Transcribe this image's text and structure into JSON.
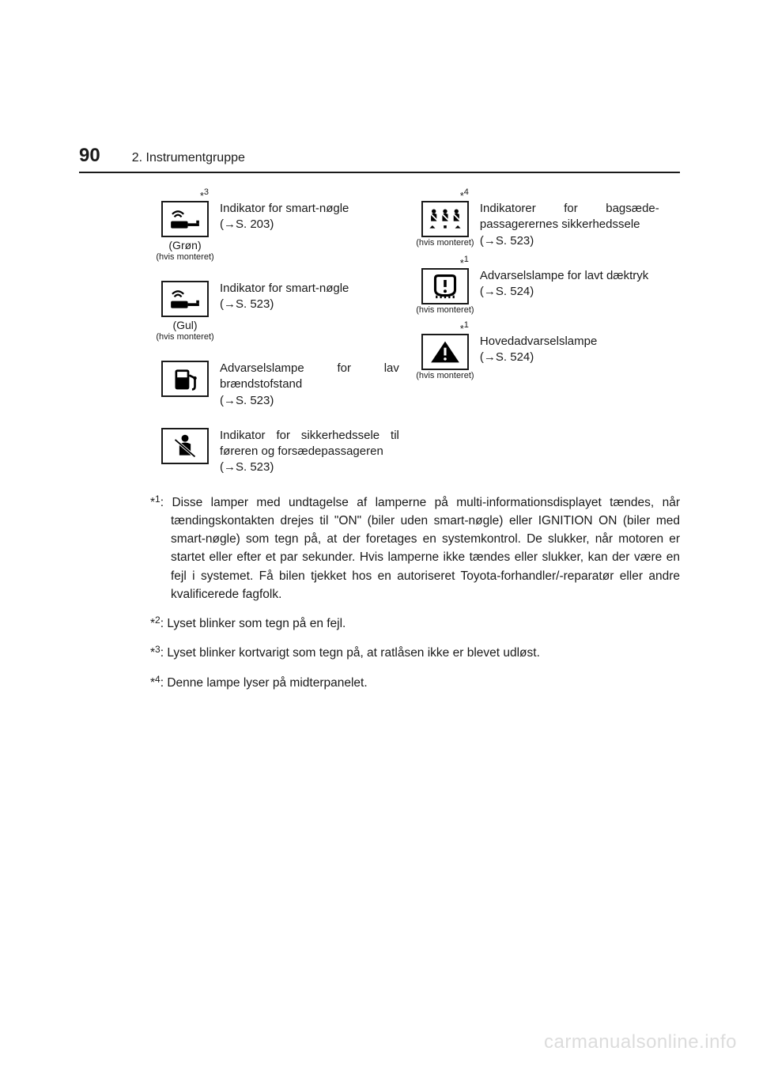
{
  "page_number": "90",
  "section_title": "2. Instrumentgruppe",
  "arrow": "→",
  "left_rows": [
    {
      "annotation": "*3",
      "icon": "key-wave",
      "under_label": "(Grøn)",
      "under_small": "(hvis monteret)",
      "desc": "Indikator for smart-nøgle",
      "ref": "(→S. 203)"
    },
    {
      "annotation": "",
      "icon": "key-wave",
      "under_label": "(Gul)",
      "under_small": "(hvis monteret)",
      "desc": "Indikator for smart-nøgle",
      "ref": "(→S. 523)"
    },
    {
      "annotation": "",
      "icon": "fuel",
      "under_label": "",
      "under_small": "",
      "desc": "Advarselslampe for lav brændstofstand",
      "ref": "(→S. 523)"
    },
    {
      "annotation": "",
      "icon": "seatbelt",
      "under_label": "",
      "under_small": "",
      "desc": "Indikator for sikkerheds­sele til føreren og forsæ­depassageren",
      "ref": "(→S. 523)"
    }
  ],
  "right_rows": [
    {
      "annotation": "*4",
      "icon": "rear-belts",
      "under_label": "",
      "under_small": "(hvis monteret)",
      "desc": "Indikatorer for bagsæde­passagerernes sikker­hedssele",
      "ref": "(→S. 523)"
    },
    {
      "annotation": "*1",
      "icon": "tpms",
      "under_label": "",
      "under_small": "(hvis monteret)",
      "desc": "Advarselslampe for lavt dæktryk",
      "ref": "(→S. 524)"
    },
    {
      "annotation": "*1",
      "icon": "master-warn",
      "under_label": "",
      "under_small": "(hvis monteret)",
      "desc": "Hovedadvarselslampe",
      "ref": "(→S. 524)"
    }
  ],
  "footnotes": [
    {
      "mark": "*1",
      "text": ": Disse lamper med undtagelse af lamperne på multi-informationsdisplayet tændes, når tændingskontakten drejes til \"ON\" (biler uden smart-nøgle) eller IGNITION ON (biler med smart-nøgle) som tegn på, at der foretages en systemkontrol. De slukker, når motoren er startet eller efter et par sekunder. Hvis lamperne ikke tændes eller slukker, kan der være en fejl i systemet. Få bilen tjekket hos en autoriseret Toyota-forhandler/-reparatør eller andre kvalificerede fagfolk."
    },
    {
      "mark": "*2",
      "text": ": Lyset blinker som tegn på en fejl."
    },
    {
      "mark": "*3",
      "text": ": Lyset blinker kortvarigt som tegn på, at ratlåsen ikke er blevet udløst."
    },
    {
      "mark": "*4",
      "text": ": Denne lampe lyser på midterpanelet."
    }
  ],
  "watermark": "carmanualsonline.info",
  "colors": {
    "text": "#1a1a1a",
    "watermark": "#dcdcdc",
    "background": "#ffffff"
  },
  "icons_svg": {
    "key-wave": "<svg viewBox='0 0 56 42' width='50' height='38'><path d='M10 14 Q18 6 26 14' fill='none' stroke='#000' stroke-width='2.5'/><path d='M13 18 Q18 12 23 18' fill='none' stroke='#000' stroke-width='2.5'/><rect x='8' y='24' width='24' height='10' rx='2' fill='#000'/><rect x='32' y='27' width='16' height='4' fill='#000'/><rect x='44' y='23' width='4' height='4' fill='#000'/></svg>",
    "fuel": "<svg viewBox='0 0 56 42' width='50' height='38'><rect x='14' y='8' width='20' height='28' rx='3' fill='#000'/><rect x='17' y='11' width='14' height='8' fill='#fff'/><path d='M34 16 L42 20 L42 32 Q42 36 38 36' fill='none' stroke='#000' stroke-width='3'/><circle cx='42' cy='20' r='2.5' fill='#000'/></svg>",
    "seatbelt": "<svg viewBox='0 0 56 42' width='50' height='38'><circle cx='28' cy='10' r='5' fill='#000'/><path d='M20 18 Q28 14 36 18 L36 34 L20 34 Z' fill='#000'/><line x1='14' y1='12' x2='42' y2='36' stroke='#fff' stroke-width='4'/><line x1='14' y1='12' x2='42' y2='36' stroke='#000' stroke-width='2'/></svg>",
    "rear-belts": "<svg viewBox='0 0 56 42' width='50' height='38'><g transform='translate(6,6)'><circle cx='6' cy='4' r='3' fill='#000'/><path d='M2 8 Q6 6 10 8 L10 18 L2 18 Z' fill='#000'/><line x1='0' y1='6' x2='12' y2='18' stroke='#fff' stroke-width='2'/></g><g transform='translate(22,6)'><circle cx='6' cy='4' r='3' fill='#000'/><path d='M2 8 Q6 6 10 8 L10 18 L2 18 Z' fill='#000'/><line x1='0' y1='6' x2='12' y2='18' stroke='#fff' stroke-width='2'/></g><g transform='translate(38,6)'><circle cx='6' cy='4' r='3' fill='#000'/><path d='M2 8 Q6 6 10 8 L10 18 L2 18 Z' fill='#000'/><line x1='0' y1='6' x2='12' y2='18' stroke='#fff' stroke-width='2'/></g><g fill='#000'><polygon points='10,30 14,34 6,34'/><rect x='26' y='30' width='4' height='4'/><polygon points='46,30 50,34 42,34'/></g></svg>",
    "tpms": "<svg viewBox='0 0 56 42' width='50' height='38'><path d='M14 10 Q14 6 18 6 L38 6 Q42 6 42 10 L42 26 Q42 34 28 34 Q14 34 14 26 Z' fill='none' stroke='#000' stroke-width='3.5'/><line x1='28' y1='12' x2='28' y2='22' stroke='#000' stroke-width='4'/><circle cx='28' cy='28' r='2.2' fill='#000'/><path d='M16 34 L16 38 M22 34 L22 38 M28 34 L28 38 M34 34 L34 38 M40 34 L40 38' stroke='#000' stroke-width='2.5'/></svg>",
    "master-warn": "<svg viewBox='0 0 56 42' width='50' height='38'><path d='M28 6 L48 36 L8 36 Z' fill='#000'/><line x1='28' y1='15' x2='28' y2='26' stroke='#fff' stroke-width='3.5'/><circle cx='28' cy='31' r='2' fill='#fff'/></svg>"
  }
}
